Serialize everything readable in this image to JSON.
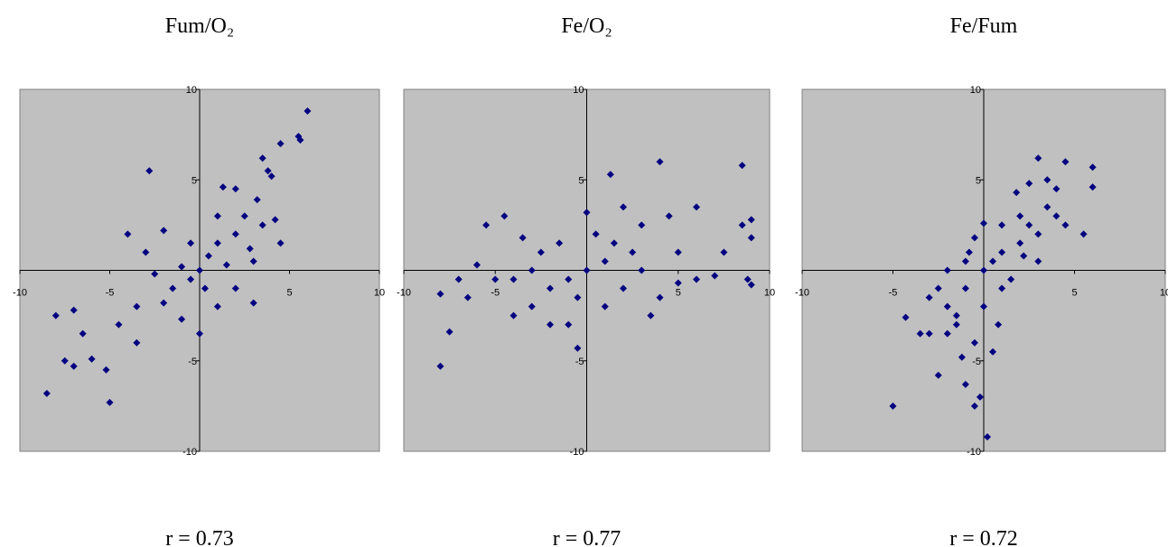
{
  "chart_data": [
    {
      "type": "scatter",
      "title": "Fum/O₂",
      "annotation": "r = 0.73",
      "color": "#000080",
      "xlim": [
        -10,
        10
      ],
      "ylim": [
        -10,
        10
      ],
      "xticks": [
        -10,
        -5,
        5,
        10
      ],
      "yticks": [
        -10,
        -5,
        5,
        10
      ],
      "x": [
        6,
        5.5,
        5.6,
        4.5,
        3.5,
        3.8,
        4,
        -2.8,
        -8.5,
        -7.5,
        -7,
        -5,
        -6,
        -5.2,
        -8,
        -7,
        -6.5,
        -4.5,
        -3.5,
        2,
        1.3,
        3.2,
        4.2,
        -4,
        -3,
        -2,
        -1,
        0,
        1,
        2,
        3,
        3.5,
        2.5,
        1,
        0,
        0.5,
        -0.5,
        -1,
        1.5,
        -1.5,
        -2,
        0.3,
        2,
        -2.5,
        -3.5,
        1,
        -0.5,
        2.8,
        3,
        4.5
      ],
      "y": [
        8.8,
        7.4,
        7.2,
        7,
        6.2,
        5.5,
        5.2,
        5.5,
        -6.8,
        -5,
        -5.3,
        -7.3,
        -4.9,
        -5.5,
        -2.5,
        -2.2,
        -3.5,
        -3,
        -4,
        4.5,
        4.6,
        3.9,
        2.8,
        2,
        1,
        2.2,
        -2.7,
        -3.5,
        -2,
        -1,
        0.5,
        2.5,
        3,
        1.5,
        0,
        0.8,
        -0.5,
        0.2,
        0.3,
        -1,
        -1.8,
        -1,
        2,
        -0.2,
        -2,
        3,
        1.5,
        1.2,
        -1.8,
        1.5
      ]
    },
    {
      "type": "scatter",
      "title": "Fe/O₂",
      "annotation": "r = 0.77",
      "color": "#000080",
      "xlim": [
        -10,
        10
      ],
      "ylim": [
        -10,
        10
      ],
      "xticks": [
        -10,
        -5,
        5,
        10
      ],
      "yticks": [
        -10,
        -5,
        5,
        10
      ],
      "x": [
        8.5,
        9,
        8.5,
        9,
        8.8,
        9,
        4,
        1.3,
        -8,
        -7.5,
        -8,
        -4.5,
        -5.5,
        -0.5,
        4.5,
        6,
        7.5,
        7,
        6,
        5,
        3,
        2.5,
        1,
        0,
        -1,
        -2,
        -3,
        -4,
        -5,
        -6,
        -3,
        -1,
        1,
        2,
        3,
        0.5,
        -1.5,
        -2.5,
        1.5,
        -0.5,
        4,
        5,
        -4,
        -3.5,
        2,
        -7,
        -6.5,
        3.5,
        0,
        -2
      ],
      "y": [
        5.8,
        2.8,
        2.5,
        1.8,
        -0.5,
        -0.8,
        6,
        5.3,
        -5.3,
        -3.4,
        -1.3,
        3,
        2.5,
        -4.3,
        3,
        3.5,
        1,
        -0.3,
        -0.5,
        -0.7,
        2.5,
        1,
        0.5,
        0,
        -0.5,
        -1,
        0,
        -0.5,
        -0.5,
        0.3,
        -2,
        -3,
        -2,
        -1,
        0,
        2,
        1.5,
        1,
        1.5,
        -1.5,
        -1.5,
        1,
        -2.5,
        1.8,
        3.5,
        -0.5,
        -1.5,
        -2.5,
        3.2,
        -3
      ]
    },
    {
      "type": "scatter",
      "title": "Fe/Fum",
      "annotation": "r = 0.72",
      "color": "#000080",
      "xlim": [
        -10,
        10
      ],
      "ylim": [
        -10,
        10
      ],
      "xticks": [
        -10,
        -5,
        5,
        10
      ],
      "yticks": [
        -10,
        -5,
        5,
        10
      ],
      "x": [
        3,
        4.5,
        6,
        6,
        3.5,
        2.5,
        -5,
        0.2,
        -0.5,
        -0.2,
        -1,
        -2.5,
        -4.3,
        -3.5,
        5.5,
        4,
        3,
        2,
        1,
        0,
        -1,
        -2,
        -1.5,
        -0.5,
        0.5,
        0,
        1,
        -1,
        2,
        1,
        3,
        4.5,
        -3,
        -2,
        0.5,
        -0.5,
        1.5,
        -2.5,
        3.5,
        2.5,
        -1.5,
        0.8,
        -3,
        -0.8,
        2.2,
        1.8,
        -1.2,
        0,
        4,
        -2
      ],
      "y": [
        6.2,
        6,
        5.7,
        4.6,
        5,
        4.8,
        -7.5,
        -9.2,
        -7.5,
        -7,
        -6.3,
        -5.8,
        -2.6,
        -3.5,
        2,
        3,
        2,
        1.5,
        1,
        0,
        -1,
        -2,
        -3,
        -4,
        -4.5,
        -2,
        -1,
        0.5,
        3,
        2.5,
        0.5,
        2.5,
        -1.5,
        -3.5,
        0.5,
        1.8,
        -0.5,
        -1,
        3.5,
        2.5,
        -2.5,
        -3,
        -3.5,
        1,
        0.8,
        4.3,
        -4.8,
        2.6,
        4.5,
        0
      ]
    }
  ]
}
